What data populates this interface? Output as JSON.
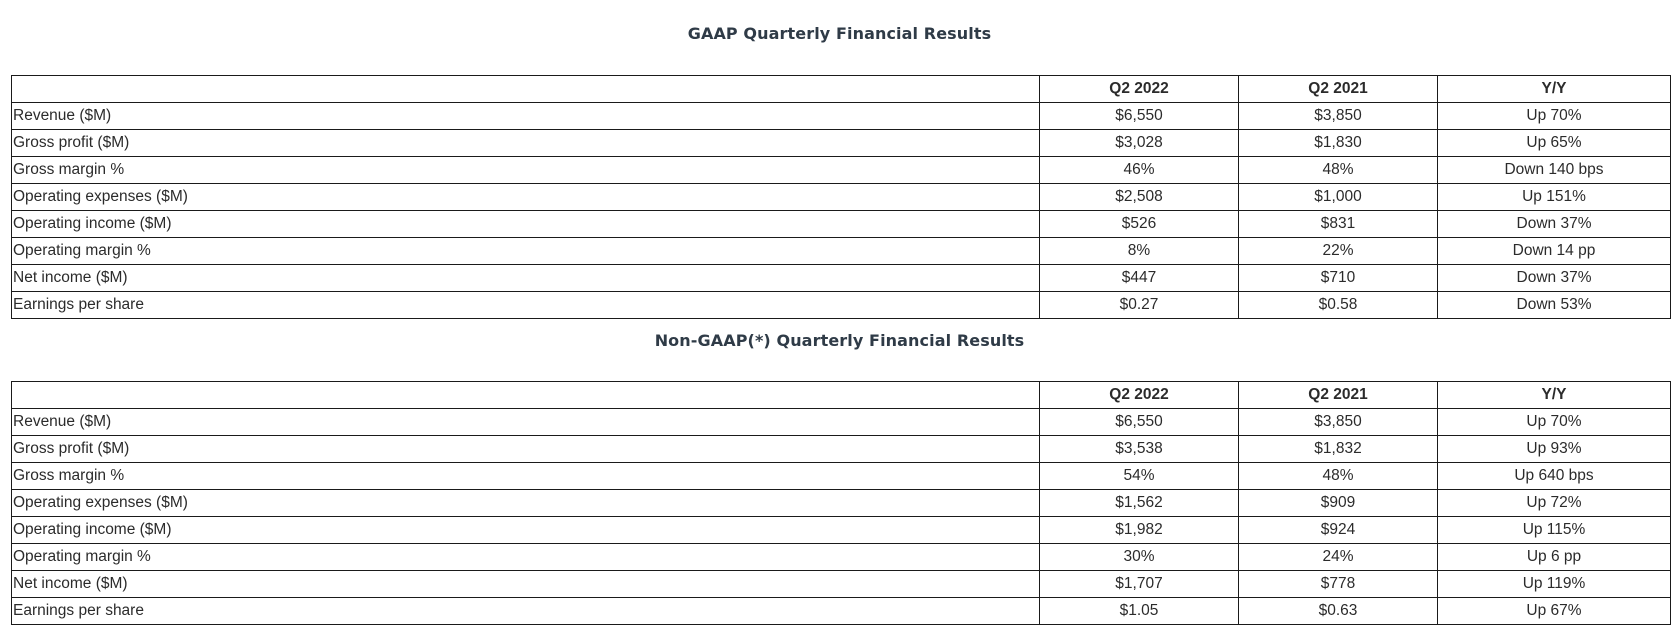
{
  "gaap": {
    "title": "GAAP Quarterly Financial Results",
    "headers": [
      "",
      "Q2 2022",
      "Q2 2021",
      "Y/Y"
    ],
    "rows": [
      {
        "label": "Revenue ($M)",
        "q2_2022": "$6,550",
        "q2_2021": "$3,850",
        "yy": "Up 70%"
      },
      {
        "label": "Gross profit ($M)",
        "q2_2022": "$3,028",
        "q2_2021": "$1,830",
        "yy": "Up 65%"
      },
      {
        "label": "Gross margin %",
        "q2_2022": "46%",
        "q2_2021": "48%",
        "yy": "Down 140 bps"
      },
      {
        "label": "Operating expenses ($M)",
        "q2_2022": "$2,508",
        "q2_2021": "$1,000",
        "yy": "Up 151%"
      },
      {
        "label": "Operating income ($M)",
        "q2_2022": "$526",
        "q2_2021": "$831",
        "yy": "Down 37%"
      },
      {
        "label": "Operating margin %",
        "q2_2022": "8%",
        "q2_2021": "22%",
        "yy": "Down 14 pp"
      },
      {
        "label": "Net income ($M)",
        "q2_2022": "$447",
        "q2_2021": "$710",
        "yy": "Down 37%"
      },
      {
        "label": "Earnings per share",
        "q2_2022": "$0.27",
        "q2_2021": "$0.58",
        "yy": "Down 53%"
      }
    ]
  },
  "non_gaap": {
    "title": "Non-GAAP(*) Quarterly Financial Results",
    "headers": [
      "",
      "Q2 2022",
      "Q2 2021",
      "Y/Y"
    ],
    "rows": [
      {
        "label": "Revenue ($M)",
        "q2_2022": "$6,550",
        "q2_2021": "$3,850",
        "yy": "Up 70%"
      },
      {
        "label": "Gross profit ($M)",
        "q2_2022": "$3,538",
        "q2_2021": "$1,832",
        "yy": "Up 93%"
      },
      {
        "label": "Gross margin %",
        "q2_2022": "54%",
        "q2_2021": "48%",
        "yy": "Up 640 bps"
      },
      {
        "label": "Operating expenses ($M)",
        "q2_2022": "$1,562",
        "q2_2021": "$909",
        "yy": "Up 72%"
      },
      {
        "label": "Operating income ($M)",
        "q2_2022": "$1,982",
        "q2_2021": "$924",
        "yy": "Up 115%"
      },
      {
        "label": "Operating margin %",
        "q2_2022": "30%",
        "q2_2021": "24%",
        "yy": "Up 6 pp"
      },
      {
        "label": "Net income ($M)",
        "q2_2022": "$1,707",
        "q2_2021": "$778",
        "yy": "Up 119%"
      },
      {
        "label": "Earnings per share",
        "q2_2022": "$1.05",
        "q2_2021": "$0.63",
        "yy": "Up 67%"
      }
    ]
  }
}
